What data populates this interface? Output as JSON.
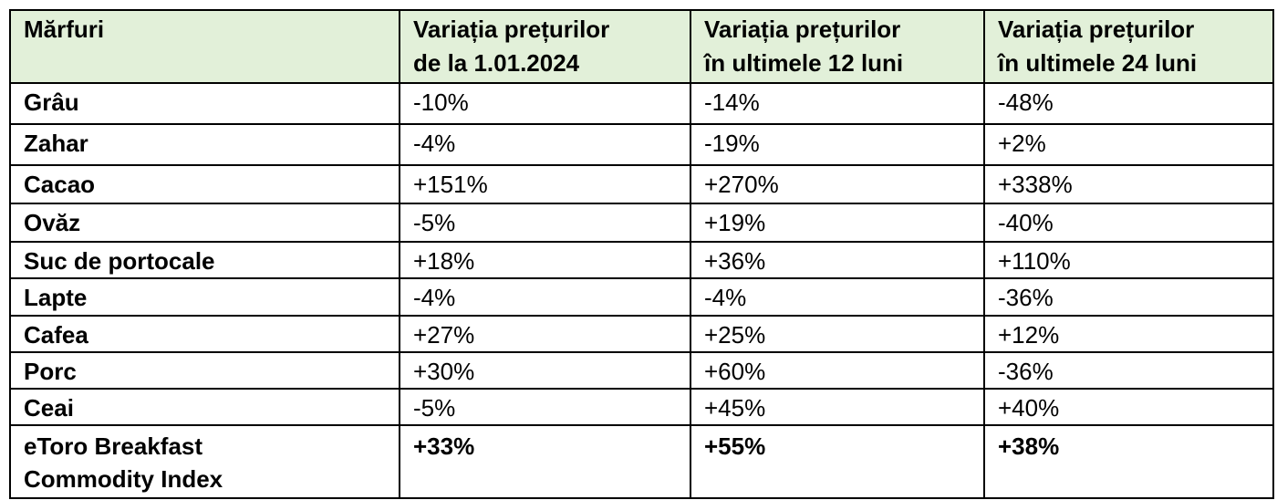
{
  "table": {
    "header": [
      "Mărfuri",
      "Variația prețurilor\nde la 1.01.2024",
      "Variația prețurilor\nîn ultimele 12 luni",
      "Variația prețurilor\nîn ultimele 24 luni"
    ],
    "rows": [
      [
        "Grâu",
        "-10%",
        "-14%",
        "-48%"
      ],
      [
        "Zahar",
        "-4%",
        "-19%",
        "+2%"
      ],
      [
        "Cacao",
        "+151%",
        "+270%",
        "+338%"
      ],
      [
        "Ovăz",
        "-5%",
        "+19%",
        "-40%"
      ],
      [
        "Suc de portocale",
        "+18%",
        "+36%",
        "+110%"
      ],
      [
        "Lapte",
        "-4%",
        "-4%",
        "-36%"
      ],
      [
        "Cafea",
        "+27%",
        "+25%",
        "+12%"
      ],
      [
        "Porc",
        "+30%",
        "+60%",
        "-36%"
      ],
      [
        "Ceai",
        "-5%",
        "+45%",
        "+40%"
      ],
      [
        "eToro Breakfast\nCommodity Index",
        "+33%",
        "+55%",
        "+38%"
      ]
    ]
  }
}
